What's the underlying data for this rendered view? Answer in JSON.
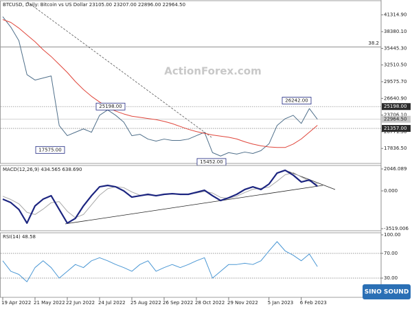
{
  "watermark": "ActionForex.com",
  "logo": "SINO SOUND",
  "chart_data": {
    "type": "line",
    "categories": [
      "19 Apr 2022",
      null,
      null,
      null,
      "21 May 2022",
      null,
      null,
      null,
      "22 Jun 2022",
      null,
      null,
      null,
      "24 Jul 2022",
      null,
      null,
      null,
      "25 Aug 2022",
      null,
      null,
      null,
      "26 Sep 2022",
      null,
      null,
      null,
      "28 Oct 2022",
      null,
      null,
      null,
      "29 Nov 2022",
      null,
      null,
      null,
      null,
      "5 Jan 2023",
      null,
      null,
      null,
      "6 Feb 2023",
      null,
      null
    ],
    "panels": [
      {
        "title": "BTCUSD, Daily:  Bitcoin vs US Dollar  23105.00 23207.00 22896.00 22964.50",
        "ylim": [
          15200,
          43820
        ],
        "yticks": [
          {
            "value": 41314.9,
            "label": "41314.90"
          },
          {
            "value": 38380.1,
            "label": "38380.10"
          },
          {
            "value": 35445.3,
            "label": "35445.30"
          },
          {
            "value": 32510.5,
            "label": "32510.50"
          },
          {
            "value": 29575.7,
            "label": "29575.70"
          },
          {
            "value": 26640.9,
            "label": "26640.90"
          },
          {
            "value": 23706.1,
            "label": "23706.10"
          },
          {
            "value": 20771.3,
            "label": "20771.30"
          },
          {
            "value": 17836.5,
            "label": "17836.50"
          }
        ],
        "series": [
          {
            "color": "#4f6f8a",
            "values": [
              41000,
              39170,
              36780,
              30820,
              29860,
              30220,
              30580,
              21870,
              20080,
              20680,
              21270,
              20680,
              23660,
              24610,
              23660,
              22460,
              20080,
              20320,
              19480,
              19130,
              19480,
              19240,
              19240,
              19480,
              20080,
              20680,
              17100,
              16500,
              17100,
              16850,
              17200,
              16950,
              17450,
              18650,
              21870,
              23060,
              23660,
              22230,
              24850,
              22965
            ]
          },
          {
            "color": "#e0453a",
            "values": [
              40500,
              40000,
              39000,
              37800,
              36600,
              35200,
              34000,
              32600,
              31200,
              29600,
              28200,
              27000,
              26000,
              25100,
              24400,
              23900,
              23500,
              23300,
              23100,
              22900,
              22600,
              22200,
              21700,
              21200,
              20800,
              20500,
              20200,
              20000,
              19800,
              19500,
              19000,
              18600,
              18300,
              18100,
              18000,
              18000,
              18600,
              19500,
              20700,
              21900
            ]
          }
        ],
        "levels": [
          {
            "value": 35700,
            "label": "38.2"
          },
          {
            "value": 25198,
            "label": "25198.00"
          },
          {
            "value": 21357,
            "label": "21357.00"
          }
        ],
        "last": {
          "value": 22964.5,
          "label": "22964.50"
        },
        "annotations": [
          {
            "value": 25198,
            "label": "25198.00"
          },
          {
            "value": 17575,
            "label": "17575.00"
          },
          {
            "value": 15452,
            "label": "15452.00"
          },
          {
            "value": 26242,
            "label": "26242.00"
          }
        ]
      },
      {
        "title": "MACD(12,26,9) 434.565 638.690",
        "ylim": [
          -3709,
          2366
        ],
        "yticks": [
          {
            "value": 2046.089,
            "label": "2046.089"
          },
          {
            "value": 0,
            "label": "0.000"
          },
          {
            "value": -3519.006,
            "label": "-3519.006"
          }
        ],
        "series": [
          {
            "color": "#a8a8a8",
            "values": [
              -500,
              -800,
              -1200,
              -2000,
              -2200,
              -1700,
              -1100,
              -1000,
              -1900,
              -2500,
              -2200,
              -1300,
              -400,
              200,
              400,
              300,
              -100,
              -400,
              -400,
              -400,
              -350,
              -300,
              -300,
              -300,
              -200,
              -50,
              -200,
              -600,
              -700,
              -500,
              -150,
              150,
              250,
              350,
              900,
              1500,
              1700,
              1300,
              900,
              639
            ]
          },
          {
            "color": "#1c2580",
            "values": [
              -770,
              -1090,
              -1730,
              -3000,
              -1400,
              -770,
              -450,
              -1730,
              -3000,
              -2560,
              -1400,
              -450,
              380,
              510,
              380,
              0,
              -580,
              -450,
              -320,
              -450,
              -320,
              -260,
              -320,
              -320,
              -130,
              60,
              -450,
              -900,
              -640,
              -320,
              130,
              380,
              130,
              640,
              1660,
              1920,
              1470,
              830,
              1020,
              435
            ]
          }
        ]
      },
      {
        "title": "RSI(14) 48.58",
        "ylim": [
          -1.1,
          103.3
        ],
        "yticks": [
          {
            "value": 100,
            "label": "100.00"
          },
          {
            "value": 70,
            "label": "70.00"
          },
          {
            "value": 30,
            "label": "30.00"
          }
        ],
        "levels": [
          70,
          30
        ],
        "series": [
          {
            "color": "#4a97d4",
            "values": [
              58,
              41,
              36,
              24,
              47,
              58,
              47,
              30,
              41,
              52,
              47,
              58,
              63,
              58,
              52,
              47,
              41,
              52,
              58,
              41,
              47,
              52,
              47,
              52,
              58,
              63,
              30,
              41,
              52,
              52,
              54,
              52,
              58,
              74,
              89,
              74,
              67,
              58,
              69,
              48.58
            ]
          }
        ]
      }
    ]
  }
}
